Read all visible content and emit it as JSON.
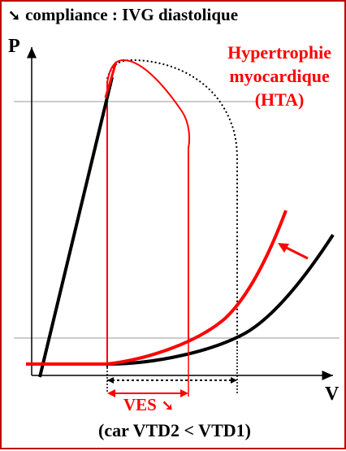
{
  "title": {
    "arrow": "➘",
    "text": "compliance : IVG diastolique"
  },
  "axes": {
    "y_label": "P",
    "x_label": "V"
  },
  "annotation": {
    "lines": [
      "Hypertrophie",
      "myocardique",
      "(HTA)"
    ]
  },
  "ves": {
    "label": "VES",
    "arrow": "➘"
  },
  "caption": "(car VTD2 < VTD1)",
  "colors": {
    "normal": "#000000",
    "pathologic": "#ff0000",
    "guide": "#999999",
    "frame": "#c00000"
  }
}
